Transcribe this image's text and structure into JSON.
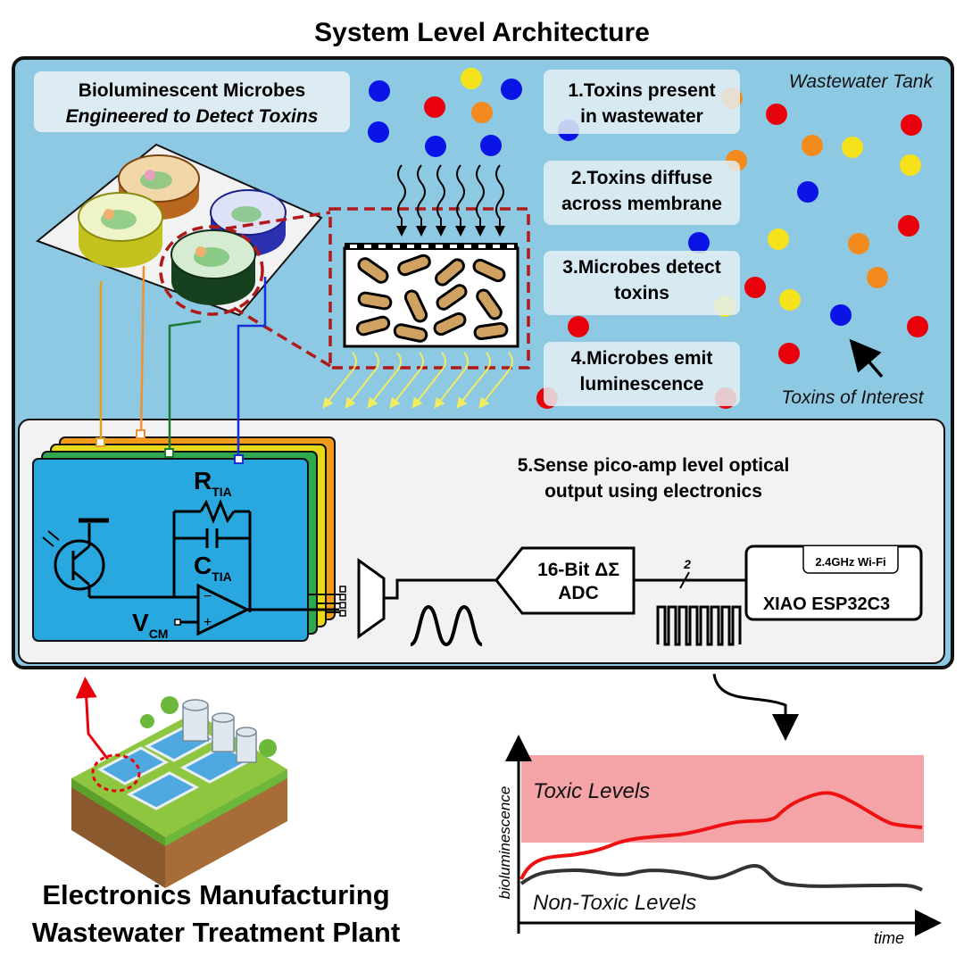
{
  "title": "System Level Architecture",
  "tank_label": "Wastewater Tank",
  "microbes_label": {
    "line1": "Bioluminescent Microbes",
    "line2": "Engineered to Detect Toxins"
  },
  "steps": [
    {
      "line1": "1.Toxins present",
      "line2": "in wastewater"
    },
    {
      "line1": "2.Toxins diffuse",
      "line2": "across membrane"
    },
    {
      "line1": "3.Microbes detect",
      "line2": "toxins"
    },
    {
      "line1": "4.Microbes emit",
      "line2": "luminescence"
    }
  ],
  "toxins_label": "Toxins of Interest",
  "electronics": {
    "step5_line1": "5.Sense pico-amp level optical",
    "step5_line2": "output using electronics",
    "r_main": "R",
    "r_sub": "TIA",
    "c_main": "C",
    "c_sub": "TIA",
    "v_main": "V",
    "v_sub": "CM",
    "op_minus": "−",
    "op_plus": "+",
    "bus_width": "2",
    "adc_line1": "16-Bit ΔΣ",
    "adc_line2": "ADC",
    "wifi": "2.4GHz Wi-Fi",
    "mcu": "XIAO ESP32C3"
  },
  "plant_label": {
    "line1": "Electronics Manufacturing",
    "line2": "Wastewater Treatment Plant"
  },
  "graph": {
    "ylabel": "bioluminescence",
    "xlabel": "time",
    "toxic_label": "Toxic Levels",
    "nontoxic_label": "Non-Toxic Levels"
  },
  "colors": {
    "tank": "#8ec9e3",
    "toxin_blue": "#0a14e6",
    "toxin_red": "#e8000a",
    "toxin_yellow": "#f5e21a",
    "toxin_orange": "#f28a1e",
    "board_blue": "#29a8e0",
    "board_green": "#2fa84f",
    "board_yellow": "#e8d81a",
    "board_orange": "#f39a1c",
    "toxic_band": "#f4a3a6",
    "toxic_line": "#ee1111",
    "nontoxic_line": "#333333"
  }
}
